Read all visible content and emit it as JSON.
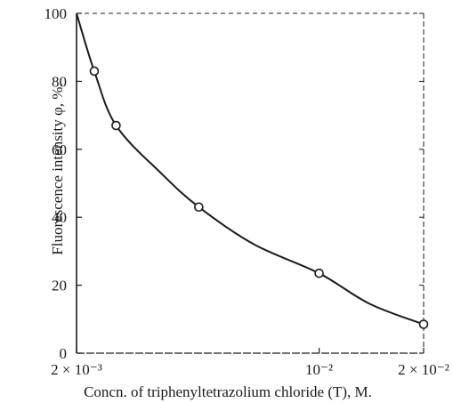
{
  "chart_data": {
    "type": "scatter",
    "title": "",
    "xlabel": "Concn. of triphenyltetrazolium chloride (T), M.",
    "ylabel": "Fluorescence intensity φ, %.",
    "x_scale": "log",
    "xlim": [
      0.002,
      0.02
    ],
    "ylim": [
      0,
      100
    ],
    "x_ticks": [
      {
        "value": 0.002,
        "label": "2 × 10⁻³"
      },
      {
        "value": 0.01,
        "label": "10⁻²"
      },
      {
        "value": 0.02,
        "label": "2 × 10⁻²"
      }
    ],
    "y_ticks": [
      {
        "value": 0,
        "label": "0"
      },
      {
        "value": 20,
        "label": "20"
      },
      {
        "value": 40,
        "label": "40"
      },
      {
        "value": 60,
        "label": "60"
      },
      {
        "value": 80,
        "label": "80"
      },
      {
        "value": 100,
        "label": "100"
      }
    ],
    "grid": false,
    "series": [
      {
        "markers": "open-circle",
        "points": [
          {
            "x": 0.00225,
            "y": 83
          },
          {
            "x": 0.0026,
            "y": 67
          },
          {
            "x": 0.0045,
            "y": 43
          },
          {
            "x": 0.01,
            "y": 23.5
          },
          {
            "x": 0.02,
            "y": 8.5
          }
        ]
      }
    ],
    "fitted_curve": {
      "points": [
        {
          "x": 0.002,
          "y": 100
        },
        {
          "x": 0.00225,
          "y": 83
        },
        {
          "x": 0.0026,
          "y": 67
        },
        {
          "x": 0.0035,
          "y": 53
        },
        {
          "x": 0.0045,
          "y": 43
        },
        {
          "x": 0.0065,
          "y": 32
        },
        {
          "x": 0.01,
          "y": 23.5
        },
        {
          "x": 0.014,
          "y": 14.5
        },
        {
          "x": 0.02,
          "y": 8.5
        }
      ]
    }
  }
}
